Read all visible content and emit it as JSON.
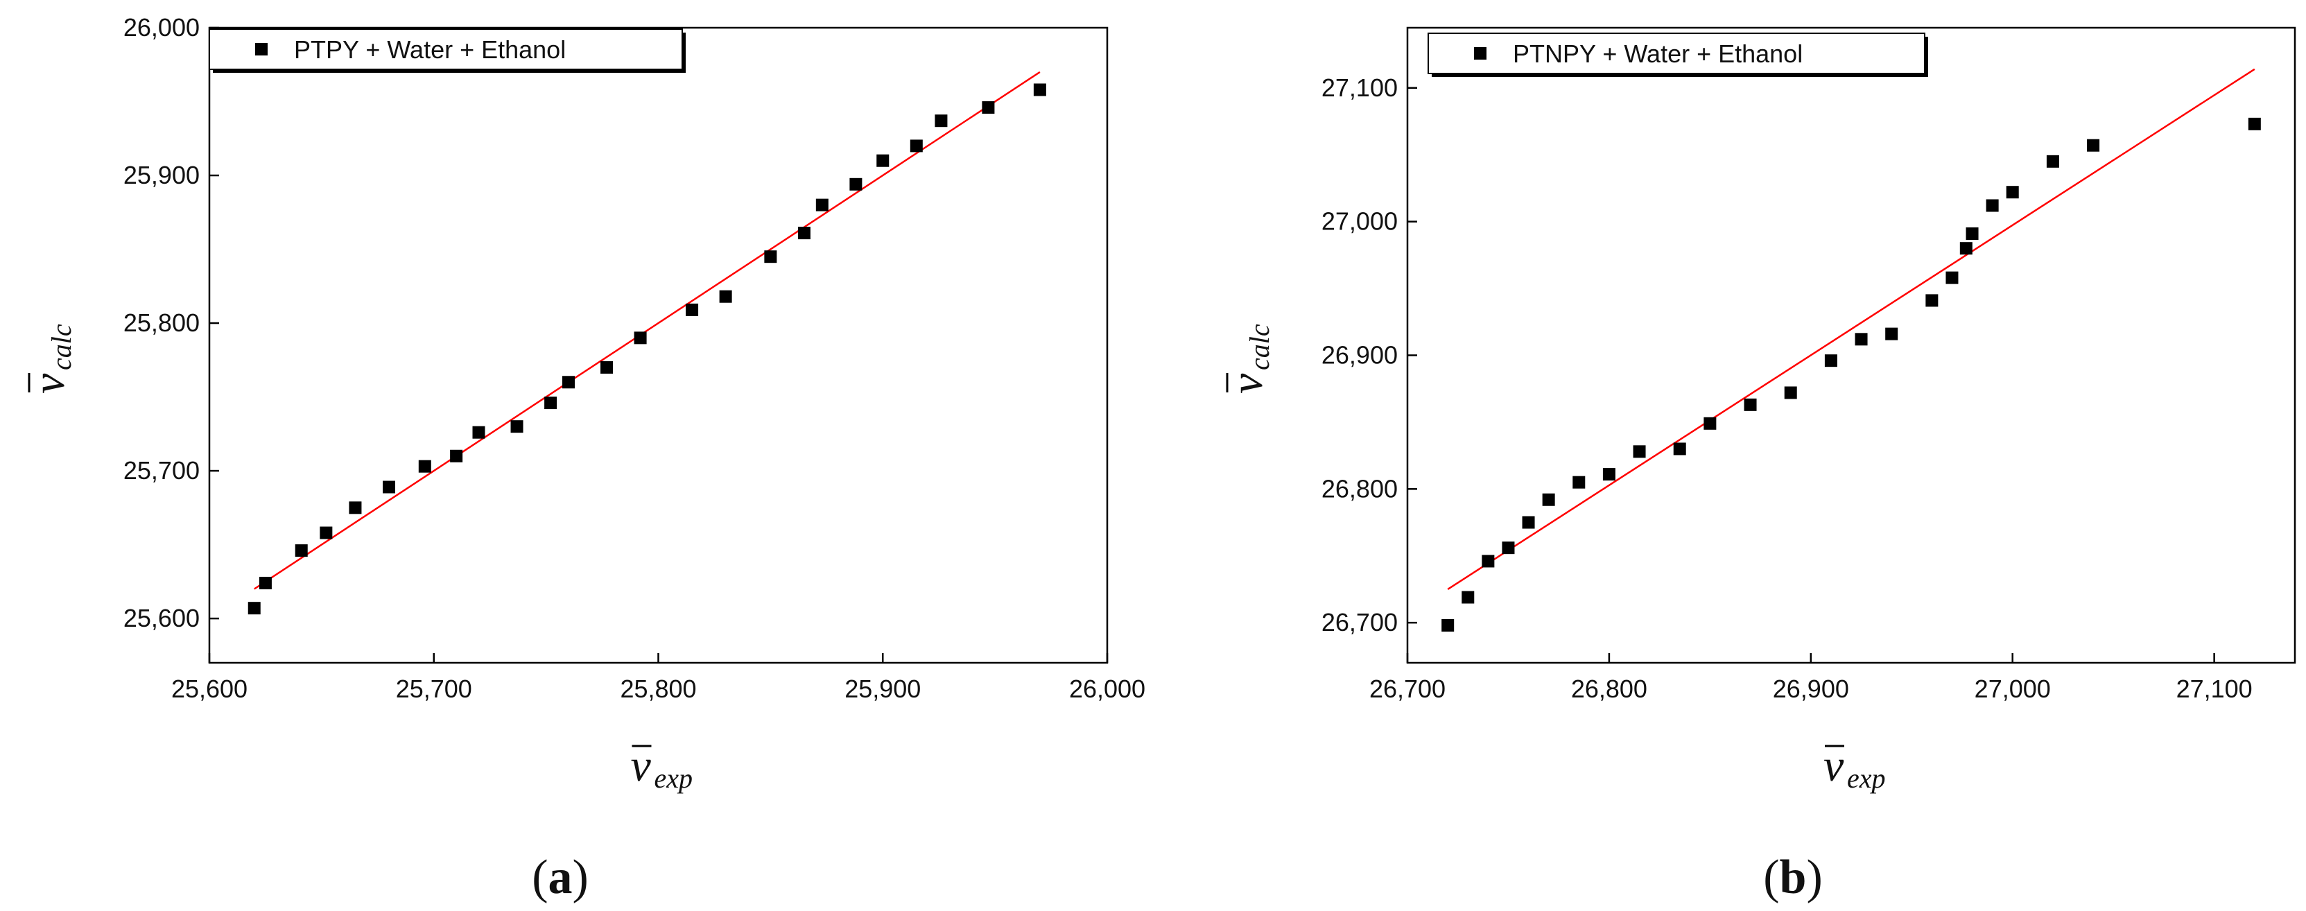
{
  "chart_data": [
    {
      "type": "scatter",
      "panel_label": "a",
      "legend": [
        "PTPY + Water + Ethanol"
      ],
      "legend_position": "top-left",
      "xlabel_symbol": "ν",
      "xlabel_sub": "exp",
      "ylabel_symbol": "ν",
      "ylabel_sub": "calc",
      "xlim": [
        25600,
        26000
      ],
      "ylim": [
        25570,
        26000
      ],
      "xticks": [
        "25,600",
        "25,700",
        "25,800",
        "25,900",
        "26,000"
      ],
      "yticks": [
        "25,600",
        "25,700",
        "25,800",
        "25,900",
        "26,000"
      ],
      "grid": false,
      "series": [
        {
          "name": "PTPY + Water + Ethanol",
          "marker": "square",
          "color": "#000000",
          "x": [
            25620,
            25625,
            25641,
            25652,
            25665,
            25680,
            25696,
            25710,
            25720,
            25737,
            25752,
            25760,
            25777,
            25792,
            25815,
            25830,
            25850,
            25865,
            25873,
            25888,
            25900,
            25915,
            25926,
            25947,
            25970
          ],
          "y": [
            25607,
            25624,
            25646,
            25658,
            25675,
            25689,
            25703,
            25710,
            25726,
            25730,
            25746,
            25760,
            25770,
            25790,
            25809,
            25818,
            25845,
            25861,
            25880,
            25894,
            25910,
            25920,
            25937,
            25946,
            25958
          ]
        },
        {
          "name": "fit",
          "type": "line",
          "color": "#ff0000",
          "x": [
            25620,
            25970
          ],
          "y": [
            25620,
            25970
          ]
        }
      ]
    },
    {
      "type": "scatter",
      "panel_label": "b",
      "legend": [
        "PTNPY + Water + Ethanol"
      ],
      "legend_position": "top-left",
      "xlabel_symbol": "ν",
      "xlabel_sub": "exp",
      "ylabel_symbol": "ν",
      "ylabel_sub": "calc",
      "xlim": [
        26700,
        27140
      ],
      "ylim": [
        26670,
        27145
      ],
      "xticks": [
        "26,700",
        "26,800",
        "26,900",
        "27,000",
        "27,100"
      ],
      "yticks": [
        "26,700",
        "26,800",
        "26,900",
        "27,000",
        "27,100"
      ],
      "grid": false,
      "series": [
        {
          "name": "PTNPY + Water + Ethanol",
          "marker": "square",
          "color": "#000000",
          "x": [
            26720,
            26730,
            26740,
            26750,
            26760,
            26770,
            26785,
            26800,
            26815,
            26835,
            26850,
            26870,
            26890,
            26910,
            26925,
            26940,
            26960,
            26970,
            26977,
            26980,
            26990,
            27000,
            27020,
            27040,
            27120
          ],
          "y": [
            26698,
            26719,
            26746,
            26756,
            26775,
            26792,
            26805,
            26811,
            26828,
            26830,
            26849,
            26863,
            26872,
            26896,
            26912,
            26916,
            26941,
            26958,
            26980,
            26991,
            27012,
            27022,
            27045,
            27057,
            27073
          ]
        },
        {
          "name": "fit",
          "type": "line",
          "color": "#ff0000",
          "x": [
            26720,
            27120
          ],
          "y": [
            26725,
            27114
          ]
        }
      ]
    }
  ]
}
